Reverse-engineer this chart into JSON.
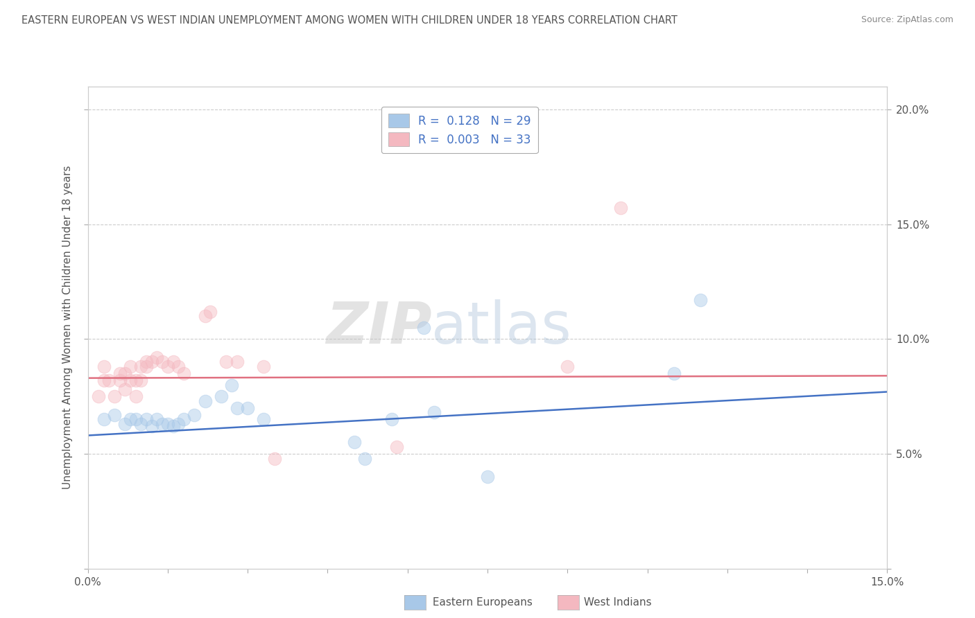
{
  "title": "EASTERN EUROPEAN VS WEST INDIAN UNEMPLOYMENT AMONG WOMEN WITH CHILDREN UNDER 18 YEARS CORRELATION CHART",
  "source": "Source: ZipAtlas.com",
  "ylabel": "Unemployment Among Women with Children Under 18 years",
  "xlim": [
    0.0,
    0.15
  ],
  "ylim": [
    0.0,
    0.21
  ],
  "xticks": [
    0.0,
    0.015,
    0.03,
    0.045,
    0.06,
    0.075,
    0.09,
    0.105,
    0.12,
    0.135,
    0.15
  ],
  "xtick_labels": [
    "0.0%",
    "",
    "",
    "",
    "",
    "",
    "",
    "",
    "",
    "",
    "15.0%"
  ],
  "yticks": [
    0.0,
    0.05,
    0.1,
    0.15,
    0.2
  ],
  "ytick_labels_right": [
    "",
    "5.0%",
    "10.0%",
    "15.0%",
    "20.0%"
  ],
  "blue_R": "0.128",
  "blue_N": "29",
  "pink_R": "0.003",
  "pink_N": "33",
  "blue_color": "#a8c8e8",
  "pink_color": "#f4b8c0",
  "blue_line_color": "#4472c4",
  "pink_line_color": "#e07080",
  "watermark_zip": "ZIP",
  "watermark_atlas": "atlas",
  "blue_scatter_x": [
    0.003,
    0.005,
    0.007,
    0.008,
    0.009,
    0.01,
    0.011,
    0.012,
    0.013,
    0.014,
    0.015,
    0.016,
    0.017,
    0.018,
    0.02,
    0.022,
    0.025,
    0.027,
    0.028,
    0.03,
    0.033,
    0.05,
    0.052,
    0.057,
    0.063,
    0.065,
    0.075,
    0.11,
    0.115
  ],
  "blue_scatter_y": [
    0.065,
    0.067,
    0.063,
    0.065,
    0.065,
    0.063,
    0.065,
    0.062,
    0.065,
    0.063,
    0.063,
    0.062,
    0.063,
    0.065,
    0.067,
    0.073,
    0.075,
    0.08,
    0.07,
    0.07,
    0.065,
    0.055,
    0.048,
    0.065,
    0.105,
    0.068,
    0.04,
    0.085,
    0.117
  ],
  "pink_scatter_x": [
    0.002,
    0.003,
    0.003,
    0.004,
    0.005,
    0.006,
    0.006,
    0.007,
    0.007,
    0.008,
    0.008,
    0.009,
    0.009,
    0.01,
    0.01,
    0.011,
    0.011,
    0.012,
    0.013,
    0.014,
    0.015,
    0.016,
    0.017,
    0.018,
    0.022,
    0.023,
    0.026,
    0.028,
    0.033,
    0.035,
    0.058,
    0.09,
    0.1
  ],
  "pink_scatter_y": [
    0.075,
    0.082,
    0.088,
    0.082,
    0.075,
    0.082,
    0.085,
    0.078,
    0.085,
    0.082,
    0.088,
    0.075,
    0.082,
    0.082,
    0.088,
    0.09,
    0.088,
    0.09,
    0.092,
    0.09,
    0.088,
    0.09,
    0.088,
    0.085,
    0.11,
    0.112,
    0.09,
    0.09,
    0.088,
    0.048,
    0.053,
    0.088,
    0.157
  ],
  "blue_trend_x": [
    0.0,
    0.15
  ],
  "blue_trend_y": [
    0.058,
    0.077
  ],
  "pink_trend_x": [
    0.0,
    0.15
  ],
  "pink_trend_y": [
    0.083,
    0.084
  ],
  "background_color": "#ffffff",
  "grid_color": "#cccccc",
  "title_color": "#555555",
  "axis_label_color": "#555555",
  "tick_color": "#555555",
  "marker_size": 180,
  "marker_alpha": 0.45,
  "legend_R_color": "#4472c4",
  "legend_N_color": "#4472c4"
}
